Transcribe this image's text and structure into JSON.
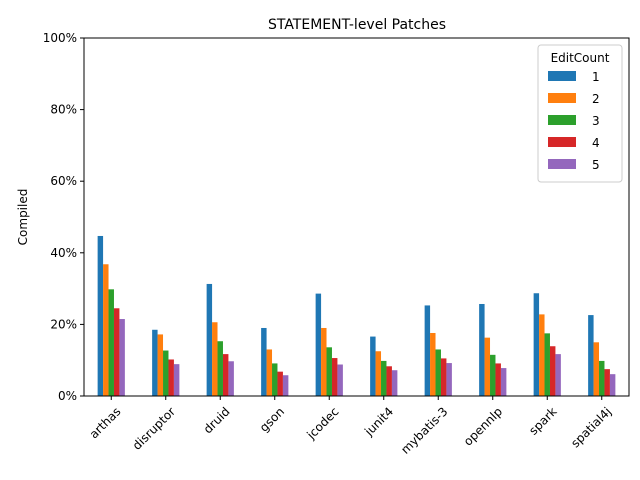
{
  "chart_data": {
    "type": "bar",
    "title": "STATEMENT-level Patches",
    "xlabel": "",
    "ylabel": "Compiled",
    "ylim": [
      0,
      1
    ],
    "yticks": [
      0,
      0.2,
      0.4,
      0.6,
      0.8,
      1.0
    ],
    "ytick_labels": [
      "0%",
      "20%",
      "40%",
      "60%",
      "80%",
      "100%"
    ],
    "grid": false,
    "legend_placement": "top-right",
    "legend_title": "EditCount",
    "categories": [
      "arthas",
      "disruptor",
      "druid",
      "gson",
      "jcodec",
      "junit4",
      "mybatis-3",
      "opennlp",
      "spark",
      "spatial4j"
    ],
    "series": [
      {
        "name": "1",
        "color": "#1f77b4",
        "values": [
          0.447,
          0.185,
          0.313,
          0.19,
          0.286,
          0.166,
          0.253,
          0.257,
          0.287,
          0.226
        ]
      },
      {
        "name": "2",
        "color": "#ff7f0e",
        "values": [
          0.368,
          0.172,
          0.206,
          0.13,
          0.19,
          0.125,
          0.176,
          0.163,
          0.228,
          0.15
        ]
      },
      {
        "name": "3",
        "color": "#2ca02c",
        "values": [
          0.298,
          0.127,
          0.153,
          0.091,
          0.136,
          0.098,
          0.13,
          0.115,
          0.175,
          0.098
        ]
      },
      {
        "name": "4",
        "color": "#d62728",
        "values": [
          0.245,
          0.102,
          0.117,
          0.068,
          0.106,
          0.083,
          0.105,
          0.091,
          0.139,
          0.075
        ]
      },
      {
        "name": "5",
        "color": "#9467bd",
        "values": [
          0.215,
          0.089,
          0.097,
          0.058,
          0.088,
          0.072,
          0.092,
          0.078,
          0.117,
          0.061
        ]
      }
    ]
  }
}
